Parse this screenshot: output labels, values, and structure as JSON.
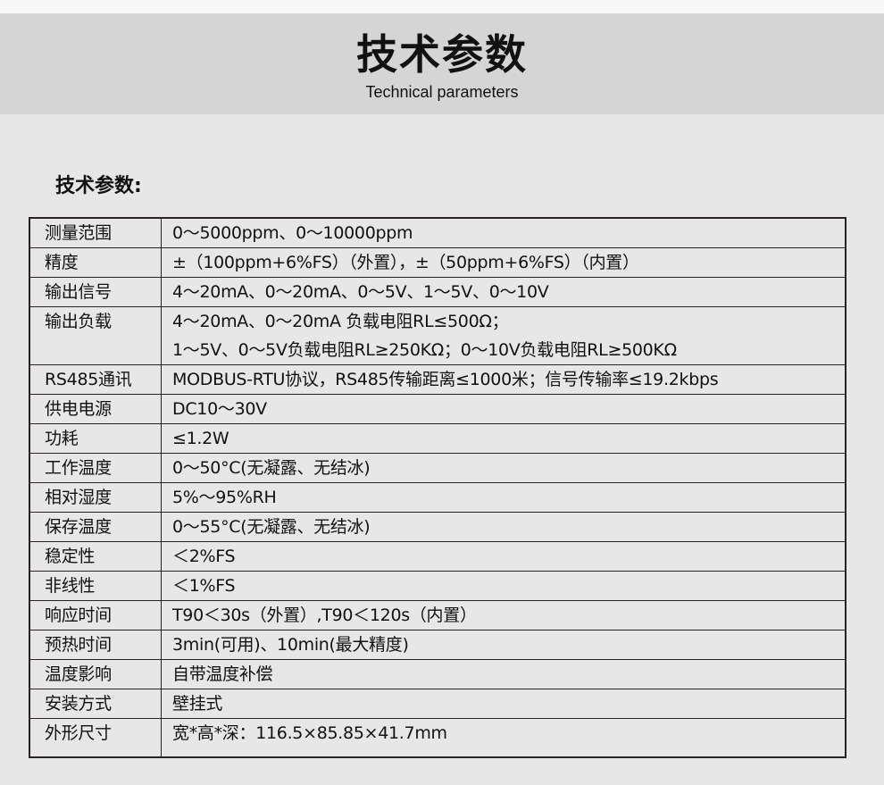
{
  "header": {
    "title": "技术参数",
    "subtitle": "Technical parameters"
  },
  "section_title": "技术参数:",
  "rows": [
    {
      "label": "测量范围",
      "values": [
        "0～5000ppm、0～10000ppm"
      ]
    },
    {
      "label": "精度",
      "values": [
        "±（100ppm+6%FS）（外置），±（50ppm+6%FS）（内置）"
      ]
    },
    {
      "label": "输出信号",
      "values": [
        "4～20mA、0～20mA、0～5V、1～5V、0～10V"
      ]
    },
    {
      "label": "输出负载",
      "values": [
        "4～20mA、0～20mA 负载电阻RL≤500Ω；",
        "1～5V、0～5V负载电阻RL≥250KΩ；0～10V负载电阻RL≥500KΩ"
      ]
    },
    {
      "label": "RS485通讯",
      "values": [
        "MODBUS-RTU协议，RS485传输距离≤1000米；信号传输率≤19.2kbps"
      ]
    },
    {
      "label": "供电电源",
      "values": [
        "DC10～30V"
      ]
    },
    {
      "label": "功耗",
      "values": [
        "≤1.2W"
      ]
    },
    {
      "label": "工作温度",
      "values": [
        "0～50°C(无凝露、无结冰)"
      ]
    },
    {
      "label": "相对湿度",
      "values": [
        "5%～95%RH"
      ]
    },
    {
      "label": "保存温度",
      "values": [
        "0～55°C(无凝露、无结冰)"
      ]
    },
    {
      "label": "稳定性",
      "values": [
        "＜2%FS"
      ]
    },
    {
      "label": "非线性",
      "values": [
        "＜1%FS"
      ]
    },
    {
      "label": "响应时间",
      "values": [
        "T90＜30s（外置）,T90＜120s（内置）"
      ]
    },
    {
      "label": "预热时间",
      "values": [
        "3min(可用)、10min(最大精度)"
      ]
    },
    {
      "label": "温度影响",
      "values": [
        "自带温度补偿"
      ]
    },
    {
      "label": "安装方式",
      "values": [
        "壁挂式"
      ]
    },
    {
      "label": "外形尺寸",
      "values": [
        "宽*高*深：116.5×85.85×41.7mm"
      ]
    }
  ]
}
